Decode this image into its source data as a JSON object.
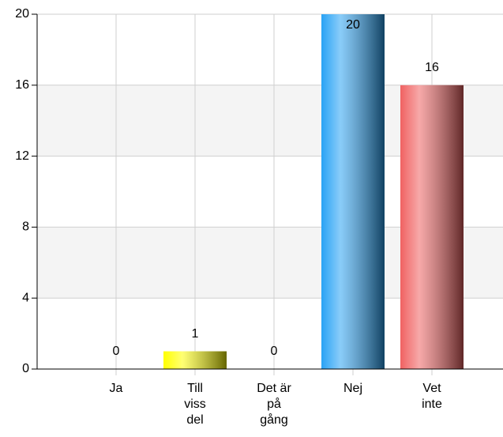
{
  "chart_data": {
    "type": "bar",
    "categories": [
      "Ja",
      "Till\nviss\ndel",
      "Det är\npå\ngång",
      "Nej",
      "Vet\ninte"
    ],
    "values": [
      0,
      1,
      0,
      20,
      16
    ],
    "colors": [
      "#ffff00",
      "#ffff00",
      "#ffff00",
      "#29a3f5",
      "#f06262"
    ],
    "ylim": [
      0,
      20
    ],
    "yticks": [
      0,
      4,
      8,
      12,
      16,
      20
    ],
    "grid": true
  }
}
